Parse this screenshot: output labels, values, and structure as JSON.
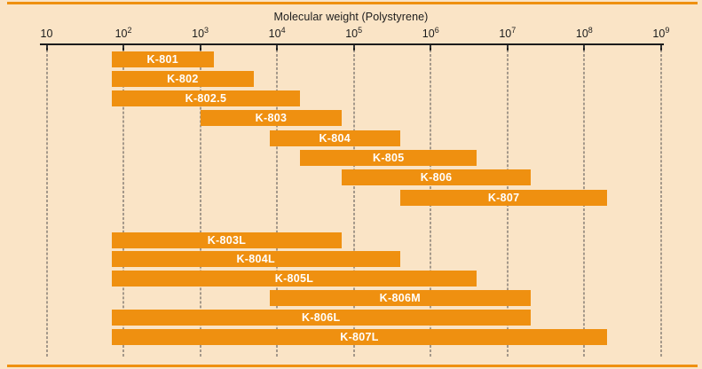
{
  "title": "Molecular weight (Polystyrene)",
  "colors": {
    "background": "#fae4c6",
    "bar": "#ef9010",
    "bar_label": "#ffffff",
    "axis": "#1c1c1c",
    "grid": "#4d4d4d",
    "edge_rule": "#ef9010"
  },
  "chart_data": {
    "type": "bar",
    "subtype": "horizontal-log-range-bars",
    "title": "Molecular weight (Polystyrene)",
    "x_axis": {
      "scale": "log",
      "min": 10,
      "max": 1000000000,
      "tick_base": "10",
      "tick_exponents": [
        1,
        2,
        3,
        4,
        5,
        6,
        7,
        8,
        9
      ],
      "gridlines": "vertical-dashed-at-each-decade"
    },
    "legend": "none",
    "series": [
      {
        "label": "K-801",
        "group": 1,
        "from": 70,
        "to": 1500
      },
      {
        "label": "K-802",
        "group": 1,
        "from": 70,
        "to": 5000
      },
      {
        "label": "K-802.5",
        "group": 1,
        "from": 70,
        "to": 20000
      },
      {
        "label": "K-803",
        "group": 1,
        "from": 1000,
        "to": 70000
      },
      {
        "label": "K-804",
        "group": 1,
        "from": 8000,
        "to": 400000
      },
      {
        "label": "K-805",
        "group": 1,
        "from": 20000,
        "to": 4000000
      },
      {
        "label": "K-806",
        "group": 1,
        "from": 70000,
        "to": 20000000
      },
      {
        "label": "K-807",
        "group": 1,
        "from": 400000,
        "to": 200000000
      },
      {
        "label": "K-803L",
        "group": 2,
        "from": 70,
        "to": 70000
      },
      {
        "label": "K-804L",
        "group": 2,
        "from": 70,
        "to": 400000
      },
      {
        "label": "K-805L",
        "group": 2,
        "from": 70,
        "to": 4000000
      },
      {
        "label": "K-806M",
        "group": 2,
        "from": 8000,
        "to": 20000000
      },
      {
        "label": "K-806L",
        "group": 2,
        "from": 70,
        "to": 20000000
      },
      {
        "label": "K-807L",
        "group": 2,
        "from": 70,
        "to": 200000000
      }
    ]
  }
}
